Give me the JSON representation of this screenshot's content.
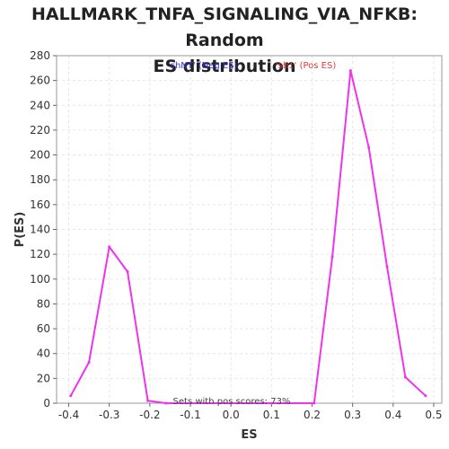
{
  "chart_data": {
    "type": "line",
    "title_line1": "HALLMARK_TNFA_SIGNALING_VIA_NFKB: Random",
    "title_line2": "ES distribution",
    "xlabel": "ES",
    "ylabel": "P(ES)",
    "xlim": [
      -0.43,
      0.52
    ],
    "ylim": [
      0,
      280
    ],
    "x_ticks": [
      -0.4,
      -0.3,
      -0.2,
      -0.1,
      0.0,
      0.1,
      0.2,
      0.3,
      0.4,
      0.5
    ],
    "x_tick_labels": [
      "-0.4",
      "-0.3",
      "-0.2",
      "-0.1",
      "0.0",
      "0.1",
      "0.2",
      "0.3",
      "0.4",
      "0.5"
    ],
    "y_ticks": [
      0,
      20,
      40,
      60,
      80,
      100,
      120,
      140,
      160,
      180,
      200,
      220,
      240,
      260,
      280
    ],
    "grid": true,
    "legend": [
      {
        "label": "'shNT' (Neg ES)",
        "color": "#3333cc"
      },
      {
        "label": "'sh1' (Pos ES)",
        "color": "#e03c3c"
      }
    ],
    "annotation": "Sets with pos scores: 73%",
    "series": [
      {
        "color": "#ee33ee",
        "x": [
          -0.395,
          -0.35,
          -0.3,
          -0.255,
          -0.205,
          -0.16,
          0.205,
          0.25,
          0.295,
          0.34,
          0.385,
          0.43,
          0.48
        ],
        "y": [
          6,
          33,
          126,
          106,
          2,
          0,
          0,
          118,
          268,
          206,
          110,
          21,
          6
        ]
      }
    ]
  }
}
